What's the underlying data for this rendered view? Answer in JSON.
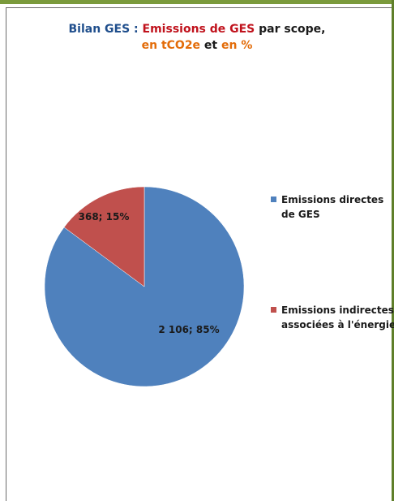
{
  "title": {
    "part1": "Bilan GES : ",
    "part2": "Emissions de GES",
    "part3": " par scope,",
    "part4": "en tCO2e",
    "part5": " et ",
    "part6": "en %"
  },
  "colors": {
    "title_blue": "#1f4e8c",
    "title_red": "#c0121c",
    "title_orange": "#e36c09",
    "series_direct": "#4f81bd",
    "series_indirect": "#c0504d"
  },
  "chart_data": {
    "type": "pie",
    "title": "Bilan GES : Emissions de GES par scope, en tCO2e et en %",
    "slices": [
      {
        "name": "Emissions directes de GES",
        "value": 2106,
        "percent": 85,
        "label": "2 106; 85%",
        "color": "#4f81bd"
      },
      {
        "name": "Emissions indirectes associées à l'énergie",
        "value": 368,
        "percent": 15,
        "label": "368; 15%",
        "color": "#c0504d"
      }
    ],
    "legend_position": "right"
  }
}
